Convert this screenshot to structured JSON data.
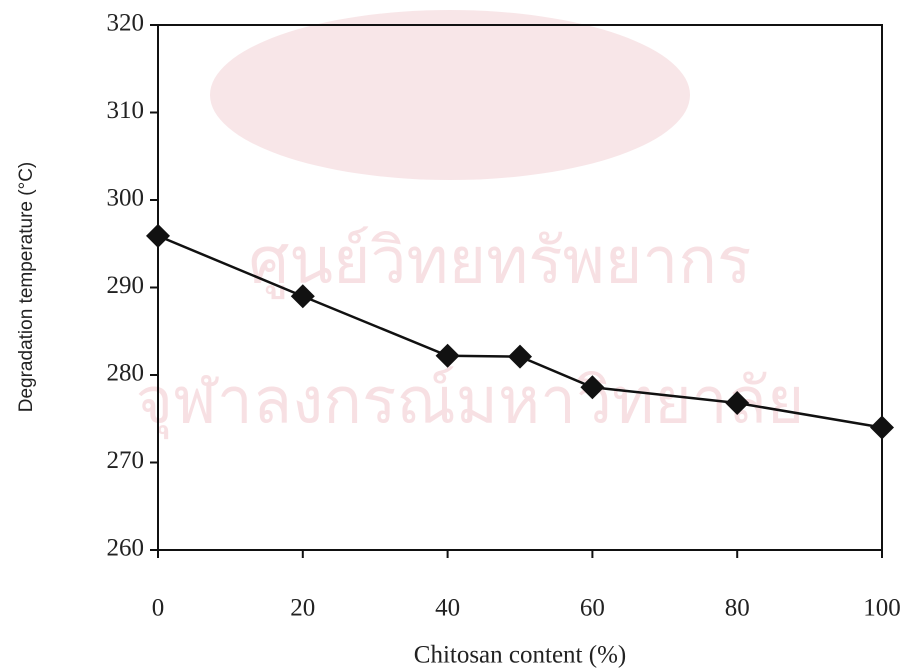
{
  "chart_data": {
    "type": "line",
    "x_label": "Chitosan content (%)",
    "y_label": "Degradation temperature (°C)",
    "watermark": [
      "ศูนย์วิทยทรัพยากร",
      "จุฬาลงกรณ์มหาวิทยาลัย"
    ],
    "x": [
      0,
      20,
      40,
      50,
      60,
      80,
      100
    ],
    "series": [
      {
        "name": "Degradation temperature",
        "color": "#111111",
        "values": [
          295.9,
          289.0,
          282.2,
          282.1,
          278.6,
          276.8,
          274.0
        ]
      }
    ],
    "xlim": [
      0,
      100
    ],
    "xticks": [
      0,
      20,
      40,
      60,
      80,
      100
    ],
    "ylim": [
      260,
      320
    ],
    "yticks": [
      260,
      270,
      280,
      290,
      300,
      310,
      320
    ],
    "grid": false
  }
}
